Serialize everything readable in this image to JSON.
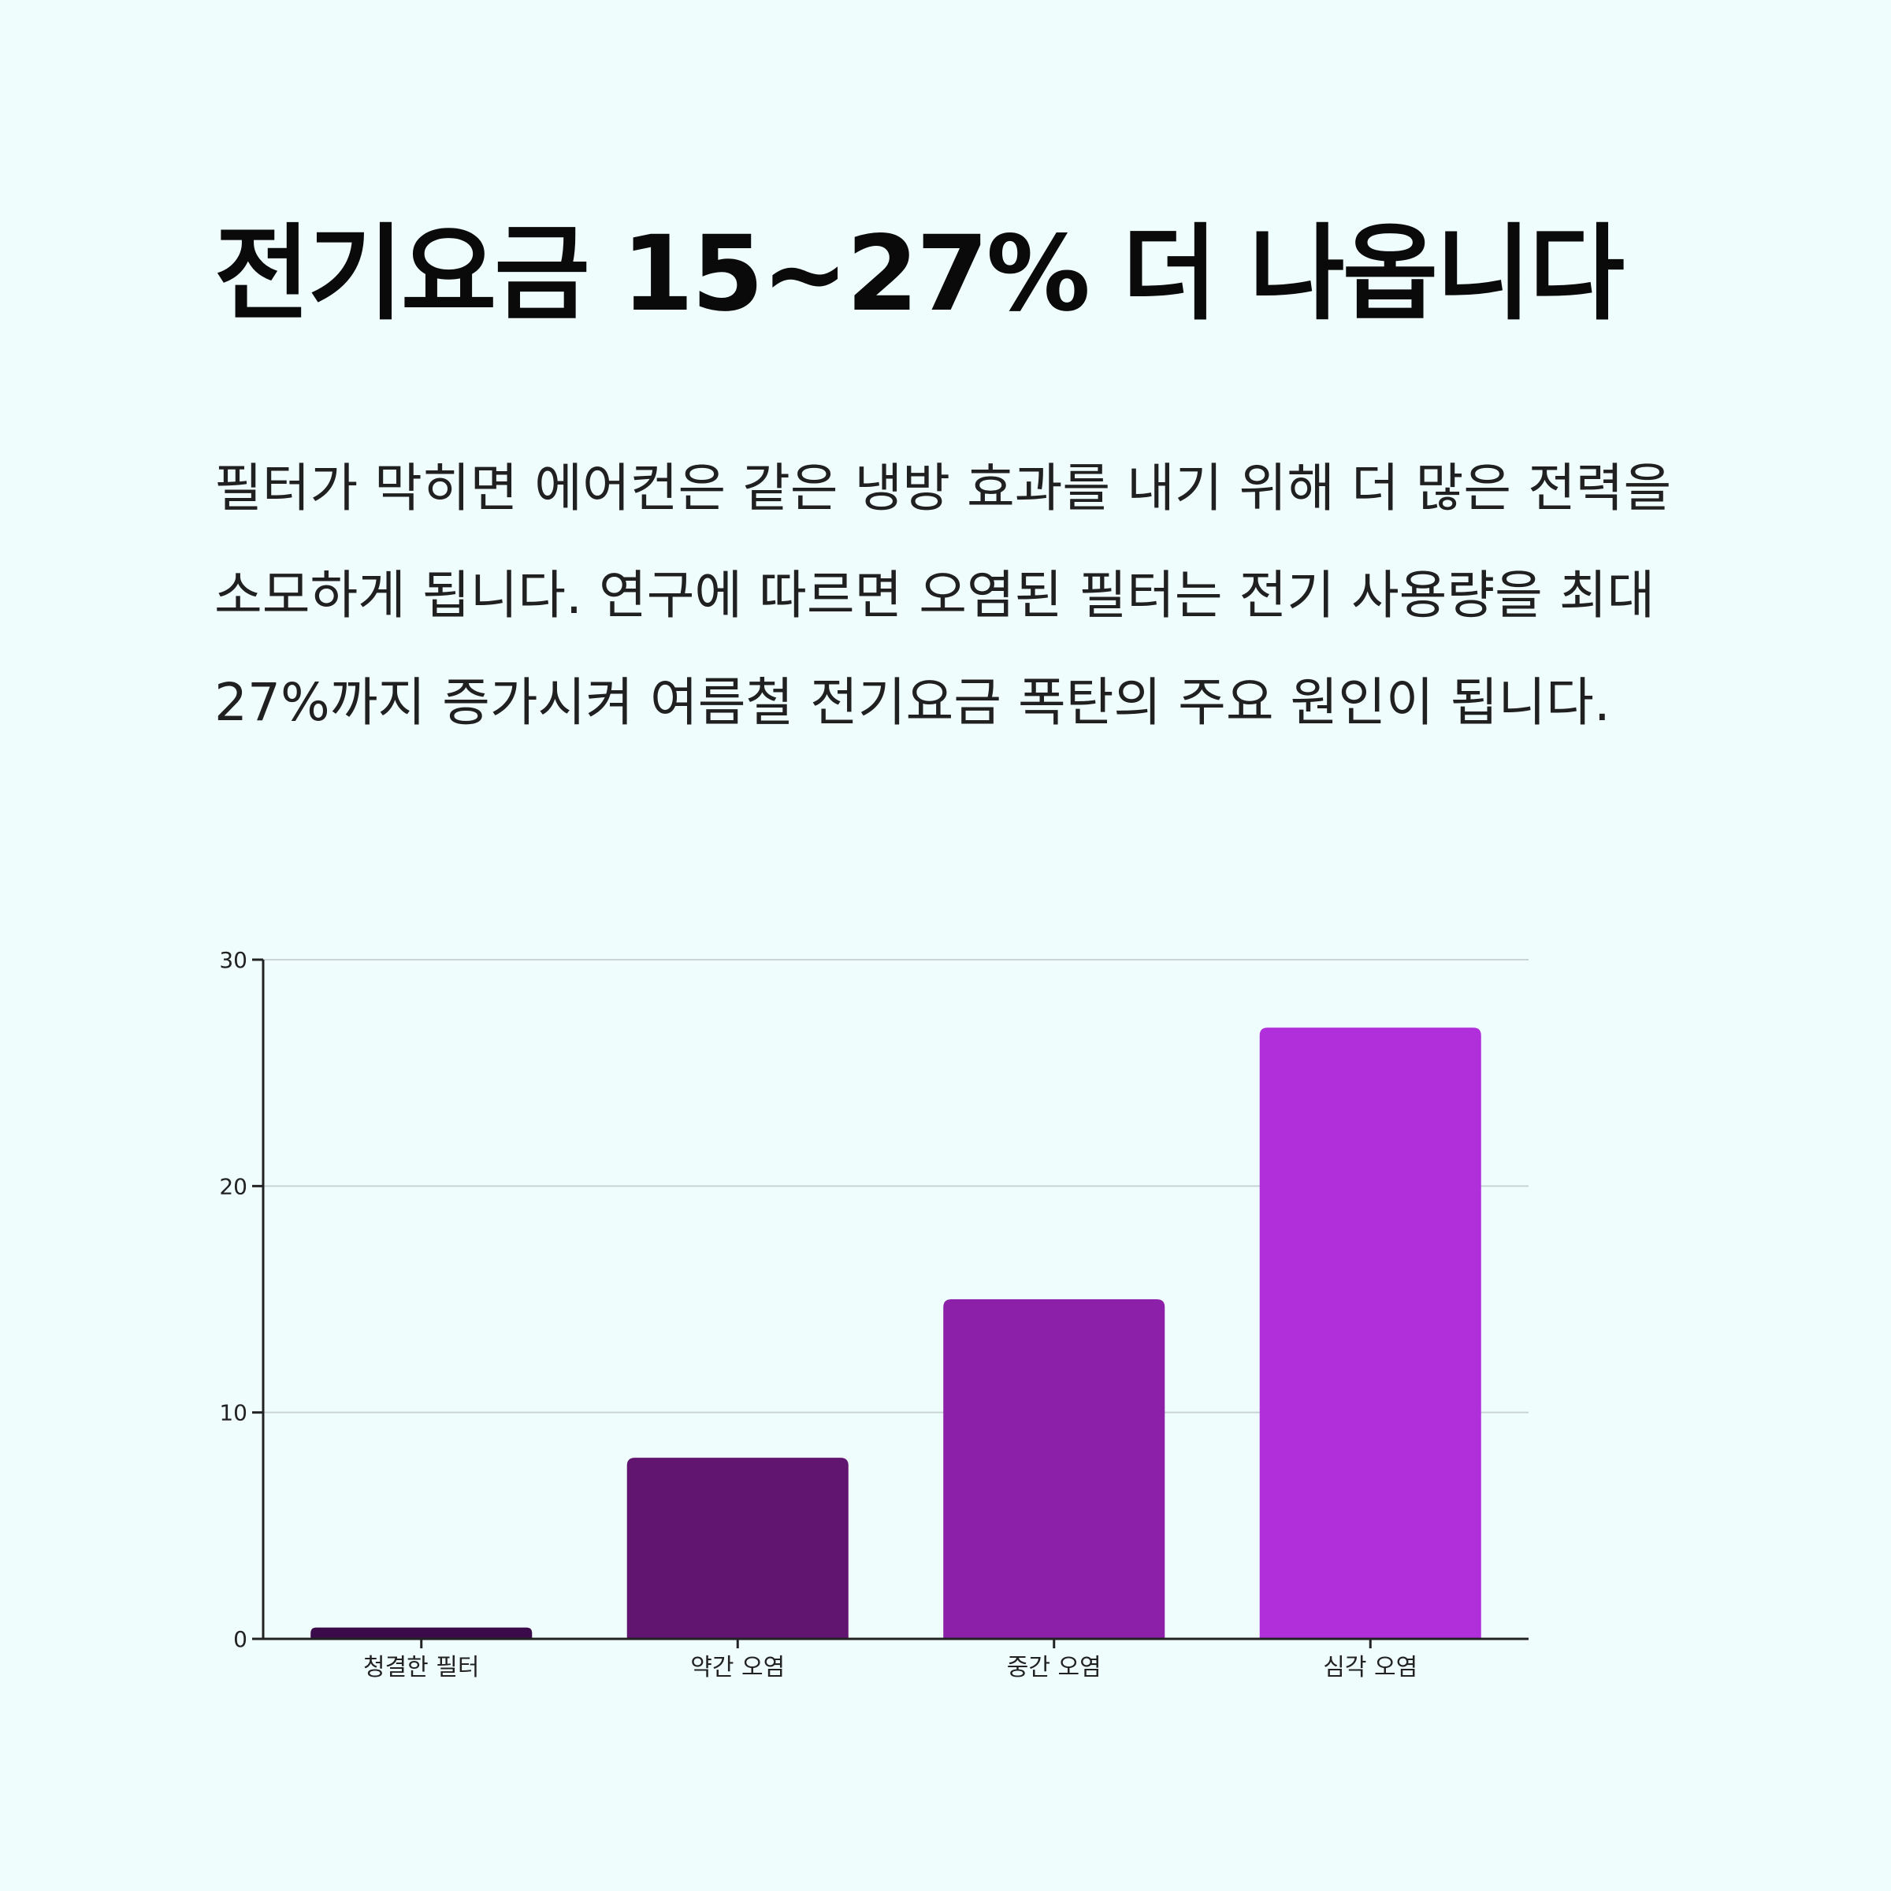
{
  "title": "전기요금 15~27% 더 나옵니다",
  "body": "필터가 막히면 에어컨은 같은 냉방 효과를 내기 위해 더 많은 전력을 소모하게 됩니다. 연구에 따르면 오염된 필터는 전기 사용량을 최대 27%까지 증가시켜 여름철 전기요금 폭탄의 주요 원인이 됩니다.",
  "chart_data": {
    "type": "bar",
    "categories": [
      "청결한 필터",
      "약간 오염",
      "중간 오염",
      "심각 오염"
    ],
    "values": [
      0.5,
      8,
      15,
      27
    ],
    "colors": [
      "#3a0a4a",
      "#611470",
      "#8c20a8",
      "#b12fda"
    ],
    "title": "",
    "xlabel": "",
    "ylabel": "",
    "ylim": [
      0,
      30
    ],
    "yticks": [
      0,
      10,
      20,
      30
    ],
    "grid": true
  }
}
